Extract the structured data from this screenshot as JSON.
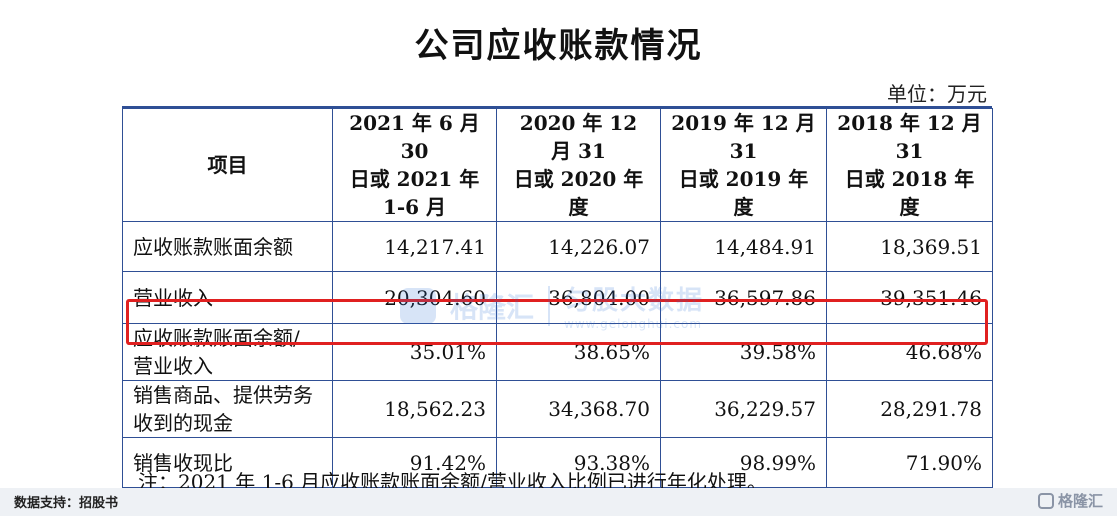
{
  "title": "公司应收账款情况",
  "unit": "单位：万元",
  "table": {
    "headers": [
      "项目",
      "2021 年 6 月 30 日或 2021 年 1-6 月",
      "2020 年 12 月 31 日或 2020 年度",
      "2019 年 12 月 31 日或 2019 年度",
      "2018 年 12 月 31 日或 2018 年度"
    ],
    "header_lines": [
      [
        "项目"
      ],
      [
        "2021 年 6 月 30",
        "日或 2021 年",
        "1-6 月"
      ],
      [
        "2020 年 12 月 31",
        "日或 2020 年度"
      ],
      [
        "2019 年 12 月 31",
        "日或 2019 年度"
      ],
      [
        "2018 年 12 月 31",
        "日或 2018 年度"
      ]
    ],
    "rows": [
      {
        "label_lines": [
          "应收账款账面余额"
        ],
        "values": [
          "14,217.41",
          "14,226.07",
          "14,484.91",
          "18,369.51"
        ]
      },
      {
        "label_lines": [
          "营业收入"
        ],
        "values": [
          "20,304.60",
          "36,804.00",
          "36,597.86",
          "39,351.46"
        ]
      },
      {
        "label_lines": [
          "应收账款账面余额/",
          "营业收入"
        ],
        "values": [
          "35.01%",
          "38.65%",
          "39.58%",
          "46.68%"
        ],
        "highlighted": true
      },
      {
        "label_lines": [
          "销售商品、提供劳务",
          "收到的现金"
        ],
        "values": [
          "18,562.23",
          "34,368.70",
          "36,229.57",
          "28,291.78"
        ]
      },
      {
        "label_lines": [
          "销售收现比"
        ],
        "values": [
          "91.42%",
          "93.38%",
          "98.99%",
          "71.90%"
        ]
      }
    ]
  },
  "note": "注：2021 年 1-6 月应收账款账面余额/营业收入比例已进行年化处理。",
  "footer": {
    "source": "数据支持：招股书",
    "brand": "格隆汇"
  },
  "watermark": {
    "left": "格隆汇",
    "right": "匀股大数据",
    "url": "www.gelonghui.com"
  },
  "colors": {
    "table_border": "#2f4f95",
    "highlight": "#e02020"
  }
}
